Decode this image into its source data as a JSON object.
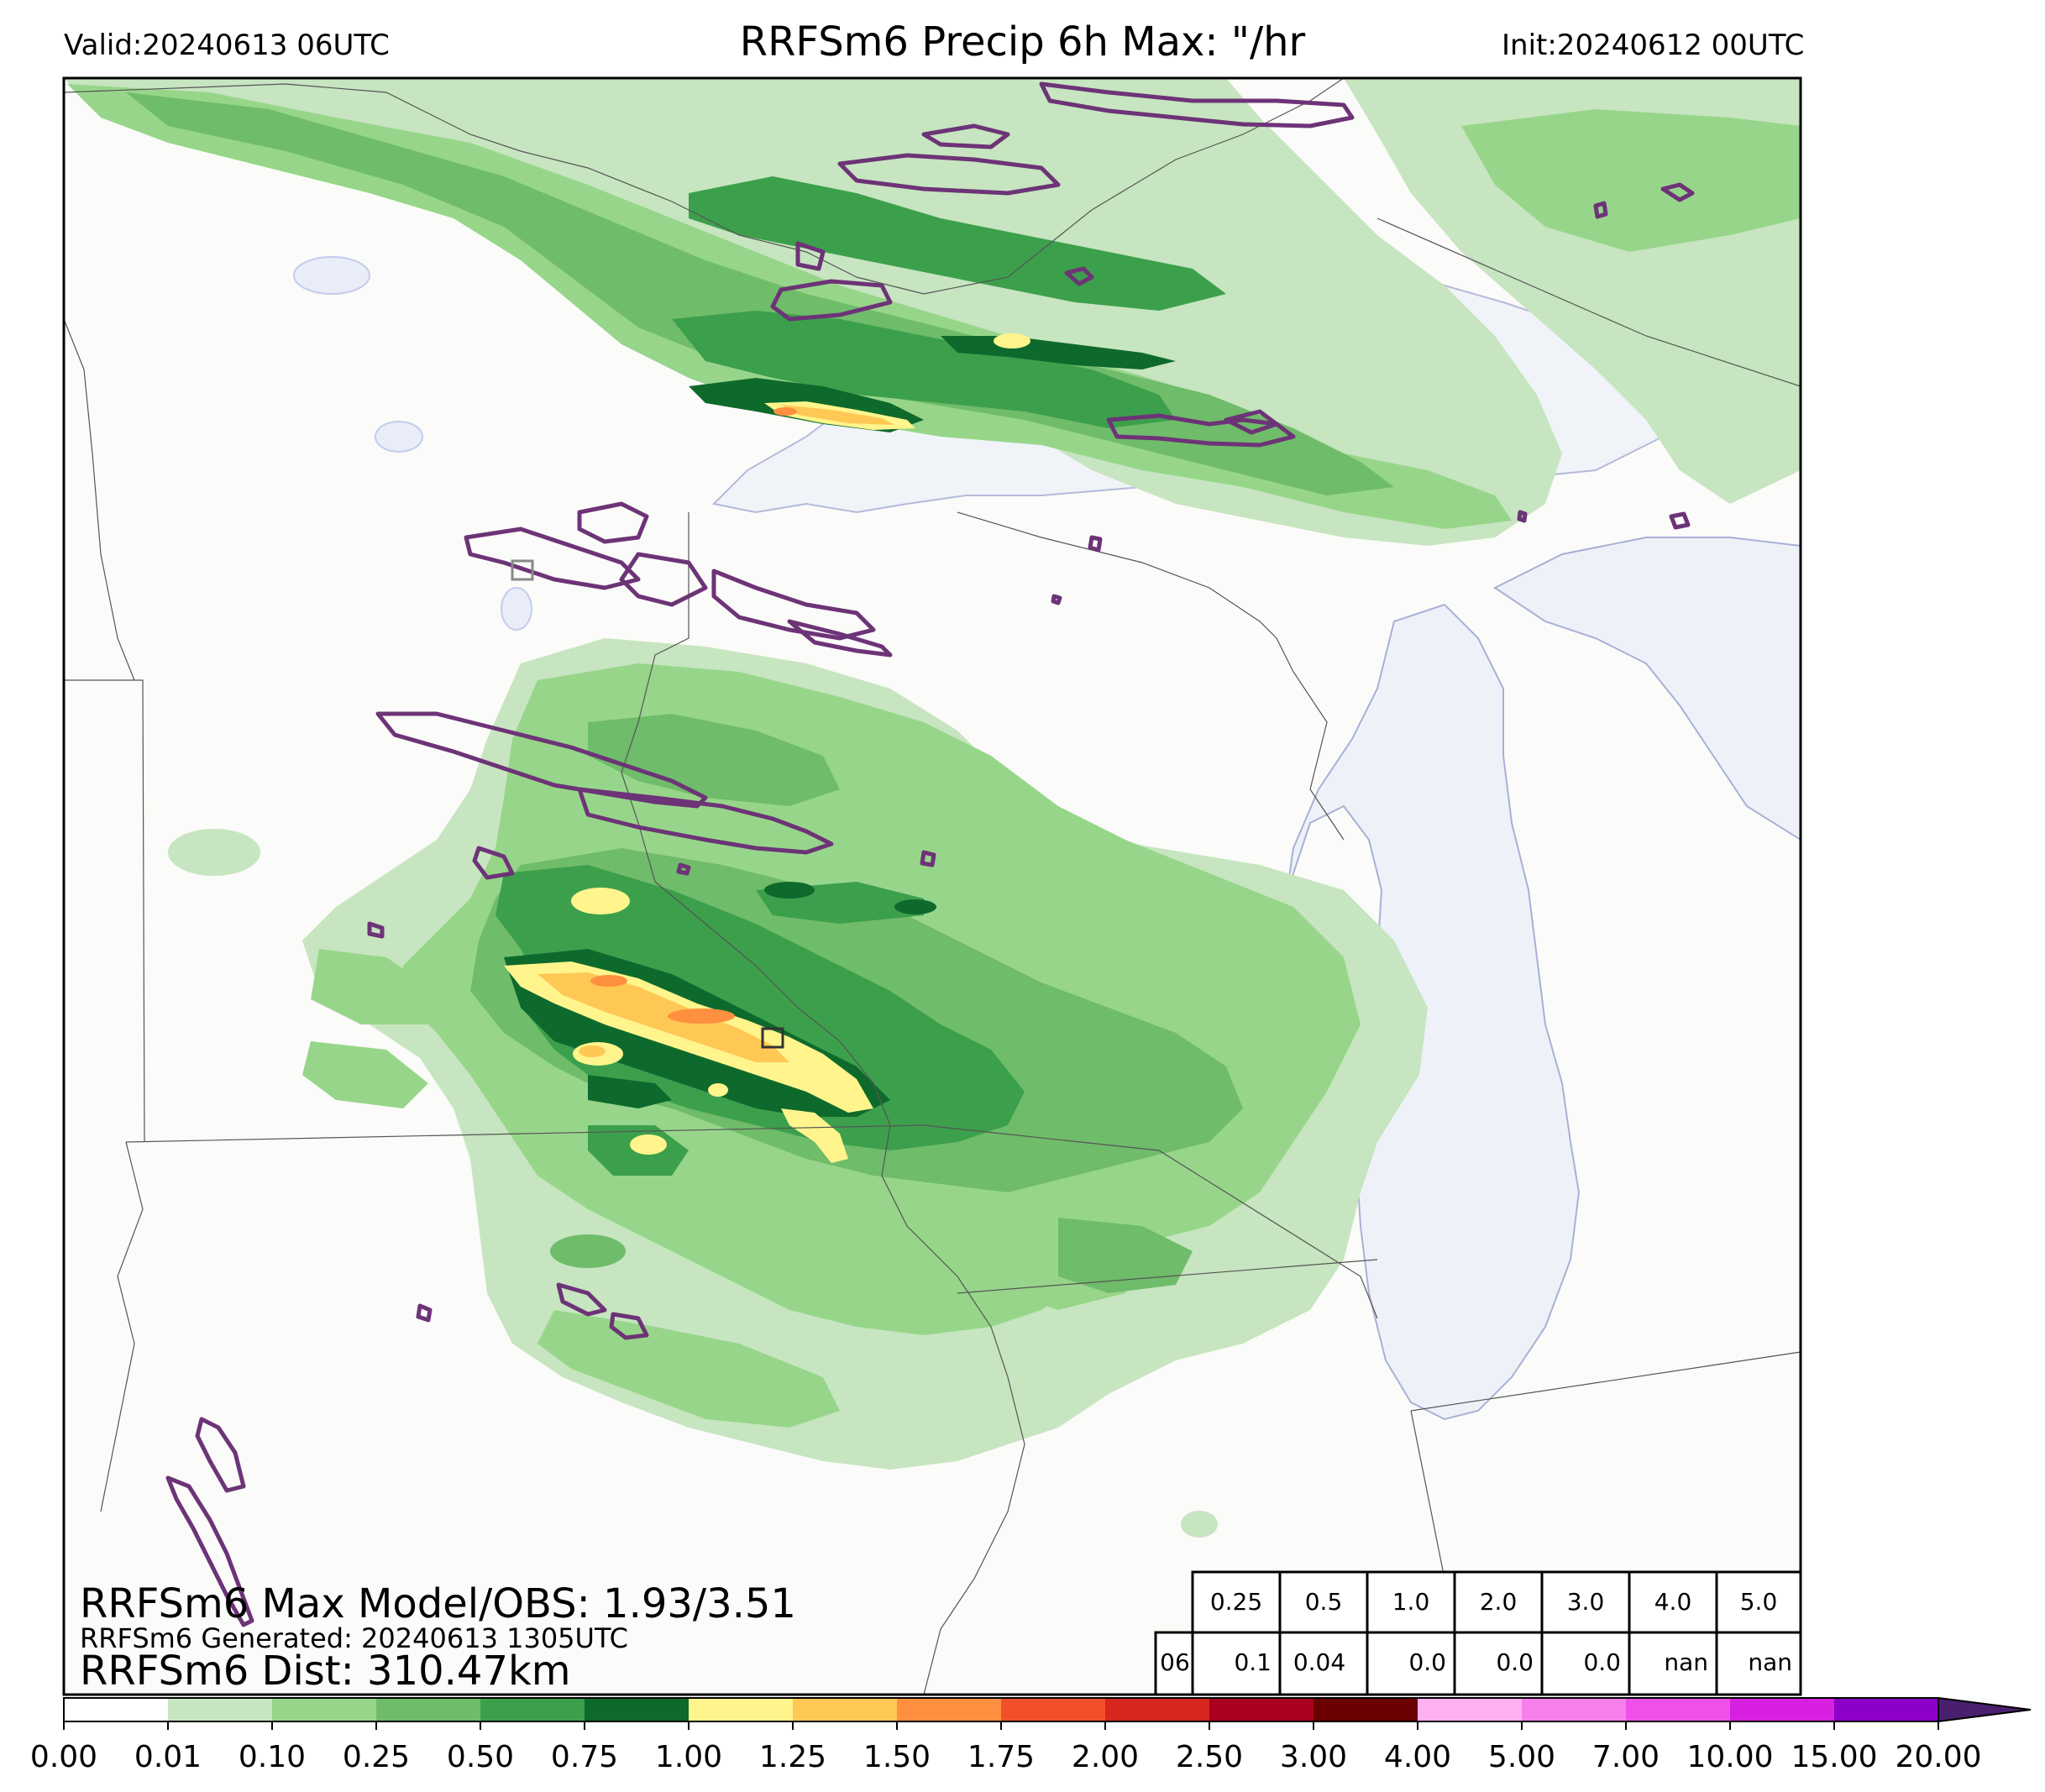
{
  "header": {
    "valid": "Valid:20240613 06UTC",
    "title": "RRFSm6 Precip 6h Max: \"/hr",
    "init": "Init:20240612 00UTC"
  },
  "overlay": {
    "max_line": "RRFSm6 Max Model/OBS: 1.93/3.51",
    "generated_line": "RRFSm6 Generated: 20240613 1305UTC",
    "dist_line": "RRFSm6 Dist: 310.47km"
  },
  "threshold_table": {
    "thresholds": [
      "0.25",
      "0.5",
      "1.0",
      "2.0",
      "3.0",
      "4.0",
      "5.0"
    ],
    "row_label": "06",
    "values": [
      "0.1",
      "0.04",
      "0.0",
      "0.0",
      "0.0",
      "nan",
      "nan"
    ]
  },
  "colorbar": {
    "ticks": [
      "0.00",
      "0.01",
      "0.10",
      "0.25",
      "0.50",
      "0.75",
      "1.00",
      "1.25",
      "1.50",
      "1.75",
      "2.00",
      "2.50",
      "3.00",
      "4.00",
      "5.00",
      "7.00",
      "10.00",
      "15.00",
      "20.00"
    ],
    "colors": [
      "#ffffff",
      "#c7e5c0",
      "#97d68a",
      "#6fbc6a",
      "#3c9f4c",
      "#0e6a2c",
      "#fff58c",
      "#ffc855",
      "#ff9040",
      "#f2502a",
      "#d7261e",
      "#a9001f",
      "#6b0000",
      "#ffb0f0",
      "#f580ec",
      "#ee50e8",
      "#d820e0",
      "#8c00c8"
    ],
    "extend": "max"
  },
  "legend_colors": {
    "light_green": "#c7e5c0",
    "obs_contour": "#6d3377",
    "lake": "#f0f4f8",
    "land": "#fbfbf9"
  }
}
